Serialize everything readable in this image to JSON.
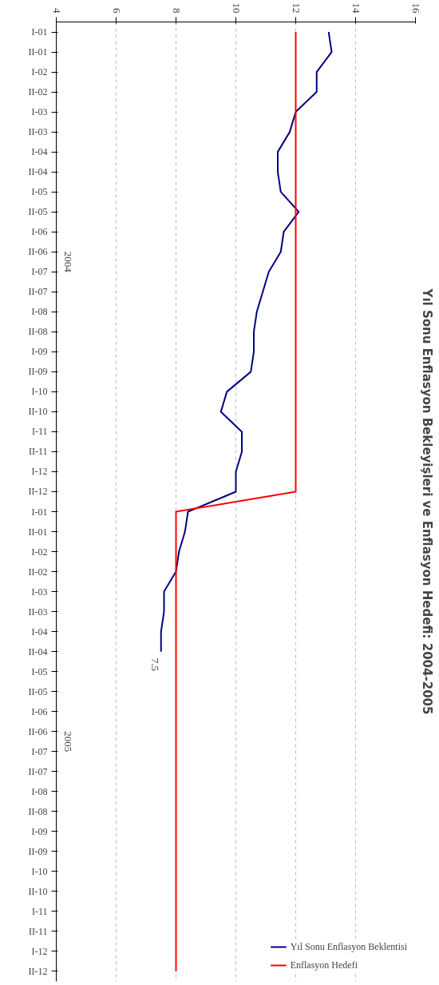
{
  "chart_data": {
    "type": "line",
    "orientation": "horizontal",
    "title": "Yıl Sonu Enflasyon Bekleyişleri ve Enflasyon Hedefi: 2004-2005",
    "categories": [
      "I-01",
      "II-01",
      "I-02",
      "II-02",
      "I-03",
      "II-03",
      "I-04",
      "II-04",
      "I-05",
      "II-05",
      "I-06",
      "II-06",
      "I-07",
      "II-07",
      "I-08",
      "II-08",
      "I-09",
      "II-09",
      "I-10",
      "II-10",
      "I-11",
      "II-11",
      "I-12",
      "II-12",
      "I-01",
      "II-01",
      "I-02",
      "II-02",
      "I-03",
      "II-03",
      "I-04",
      "II-04",
      "I-05",
      "II-05",
      "I-06",
      "II-06",
      "I-07",
      "II-07",
      "I-08",
      "II-08",
      "I-09",
      "II-09",
      "I-10",
      "II-10",
      "I-11",
      "II-11",
      "I-12",
      "II-12"
    ],
    "series": [
      {
        "name": "Yıl Sonu Enflasyon Beklentisi",
        "color": "#000080",
        "values": [
          13.1,
          13.2,
          12.7,
          12.7,
          12.0,
          11.8,
          11.4,
          11.4,
          11.5,
          12.1,
          11.6,
          11.5,
          11.1,
          10.9,
          10.7,
          10.6,
          10.6,
          10.5,
          9.7,
          9.5,
          10.2,
          10.2,
          10.0,
          10.0,
          8.4,
          8.3,
          8.1,
          8.0,
          7.6,
          7.6,
          7.5,
          7.5,
          null,
          null,
          null,
          null,
          null,
          null,
          null,
          null,
          null,
          null,
          null,
          null,
          null,
          null,
          null,
          null
        ],
        "value_labels": [
          null,
          null,
          null,
          null,
          null,
          null,
          null,
          null,
          null,
          null,
          null,
          null,
          null,
          null,
          null,
          null,
          null,
          null,
          null,
          null,
          null,
          null,
          null,
          null,
          null,
          null,
          null,
          null,
          null,
          null,
          null,
          "7.5",
          null,
          null,
          null,
          null,
          null,
          null,
          null,
          null,
          null,
          null,
          null,
          null,
          null,
          null,
          null,
          null
        ]
      },
      {
        "name": "Enflasyon Hedefi",
        "color": "#ff0000",
        "values": [
          12,
          12,
          12,
          12,
          12,
          12,
          12,
          12,
          12,
          12,
          12,
          12,
          12,
          12,
          12,
          12,
          12,
          12,
          12,
          12,
          12,
          12,
          12,
          12,
          8,
          8,
          8,
          8,
          8,
          8,
          8,
          8,
          8,
          8,
          8,
          8,
          8,
          8,
          8,
          8,
          8,
          8,
          8,
          8,
          8,
          8,
          8,
          8
        ]
      }
    ],
    "xlim": [
      4,
      16
    ],
    "xticks": [
      4,
      6,
      8,
      10,
      12,
      14,
      16
    ],
    "grid": "x",
    "legend": "bottom right",
    "line_style": "solid",
    "annotations": [
      "2004",
      "2005"
    ]
  }
}
